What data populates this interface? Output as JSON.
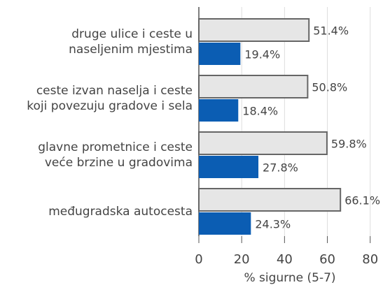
{
  "chart_data": {
    "type": "hbar",
    "categories": [
      [
        "druge ulice i ceste u",
        "naseljenim mjestima"
      ],
      [
        "ceste izvan naselja i ceste",
        "koji povezuju gradove i sela"
      ],
      [
        "glavne prometnice i ceste",
        "veće brzine u gradovima"
      ],
      [
        "međugradska autocesta"
      ]
    ],
    "series": [
      {
        "color": "#e6e6e6",
        "values": [
          51.4,
          50.8,
          59.8,
          66.1
        ],
        "value_labels": [
          "51.4%",
          "50.8%",
          "59.8%",
          "66.1%"
        ]
      },
      {
        "color": "#0b5db3",
        "values": [
          19.4,
          18.4,
          27.8,
          24.3
        ],
        "value_labels": [
          "19.4%",
          "18.4%",
          "27.8%",
          "24.3%"
        ]
      }
    ],
    "xlabel": "% sigurne (5-7)",
    "xlim": [
      0,
      85
    ],
    "xticks": [
      0,
      20,
      40,
      60,
      80
    ],
    "grid": true
  }
}
